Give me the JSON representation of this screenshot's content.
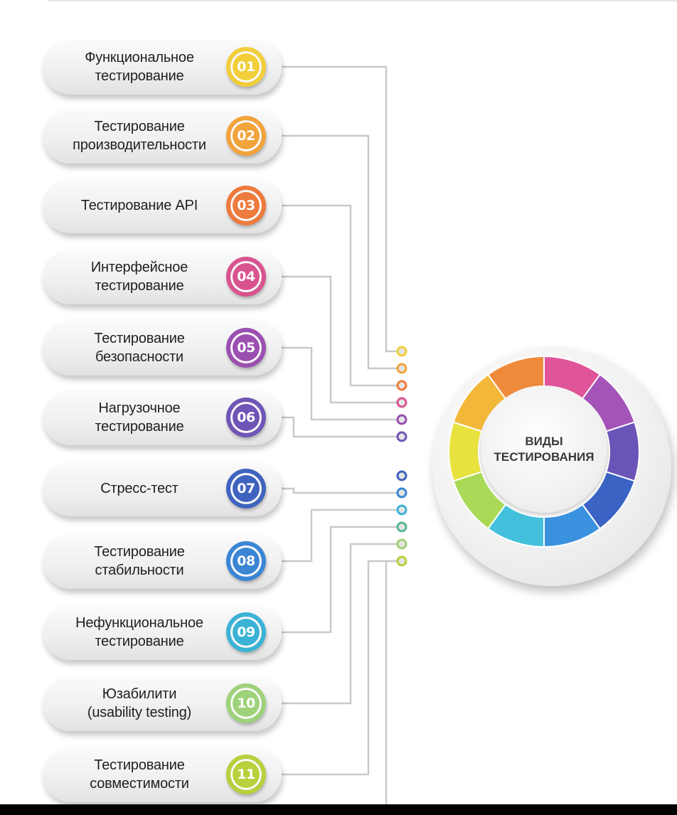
{
  "center": {
    "line1": "ВИДЫ",
    "line2": "ТЕСТИРОВАНИЯ"
  },
  "items": [
    {
      "number": "01",
      "label": "Функциональное\nтестирование",
      "color": "#f2cf3a"
    },
    {
      "number": "02",
      "label": "Тестирование\nпроизводительности",
      "color": "#f2a33a"
    },
    {
      "number": "03",
      "label": "Тестирование API",
      "color": "#ee7a3c"
    },
    {
      "number": "04",
      "label": "Интерфейсное\nтестирование",
      "color": "#d9538f"
    },
    {
      "number": "05",
      "label": "Тестирование\nбезопасности",
      "color": "#9b4fb0"
    },
    {
      "number": "06",
      "label": "Нагрузочное\nтестирование",
      "color": "#6f55b5"
    },
    {
      "number": "07",
      "label": "Стресс-тест",
      "color": "#3f64bf"
    },
    {
      "number": "08",
      "label": "Тестирование\nстабильности",
      "color": "#3a86d4"
    },
    {
      "number": "09",
      "label": "Нефункциональное\nтестирование",
      "color": "#3bb3d6"
    },
    {
      "number": "10",
      "label": "Юзабилити\n(usability testing)",
      "color": "#9ed27a"
    },
    {
      "number": "11",
      "label": "Тестирование\nсовместимости",
      "color": "#b8d03c"
    }
  ],
  "wheel_colors": [
    "#e0559a",
    "#a454b8",
    "#6a54b8",
    "#3b63c4",
    "#3a92de",
    "#43c0dc",
    "#a9d957",
    "#e8e23f",
    "#f3b83a",
    "#f08a3b"
  ]
}
